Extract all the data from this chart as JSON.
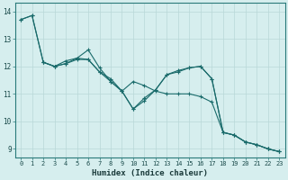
{
  "title": "",
  "xlabel": "Humidex (Indice chaleur)",
  "ylabel": "",
  "bg_color": "#d6eeee",
  "line_color": "#1a6b6b",
  "grid_color": "#b8d8d8",
  "xlim": [
    -0.5,
    23.5
  ],
  "ylim": [
    8.7,
    14.3
  ],
  "xticks": [
    0,
    1,
    2,
    3,
    4,
    5,
    6,
    7,
    8,
    9,
    10,
    11,
    12,
    13,
    14,
    15,
    16,
    17,
    18,
    19,
    20,
    21,
    22,
    23
  ],
  "yticks": [
    9,
    10,
    11,
    12,
    13,
    14
  ],
  "line1_x": [
    0,
    1,
    2,
    3,
    4,
    5,
    6,
    7,
    8,
    9,
    10,
    11,
    12,
    13,
    14,
    15,
    16,
    17,
    18,
    19,
    20,
    21,
    22,
    23
  ],
  "line1_y": [
    13.7,
    13.85,
    12.15,
    12.0,
    12.2,
    12.3,
    12.25,
    11.8,
    11.55,
    11.1,
    10.45,
    10.85,
    11.15,
    11.7,
    11.8,
    11.95,
    12.0,
    11.55,
    9.6,
    9.5,
    9.25,
    9.15,
    9.0,
    8.9
  ],
  "line2_x": [
    0,
    1,
    2,
    3,
    4,
    5,
    6,
    7,
    8,
    9,
    10,
    11,
    12,
    13,
    14,
    15,
    16,
    17,
    18,
    19,
    20,
    21,
    22,
    23
  ],
  "line2_y": [
    13.7,
    13.85,
    12.15,
    12.0,
    12.1,
    12.3,
    12.6,
    11.95,
    11.45,
    11.1,
    11.45,
    11.3,
    11.1,
    11.0,
    11.0,
    11.0,
    10.9,
    10.7,
    9.6,
    9.5,
    9.25,
    9.15,
    9.0,
    8.9
  ],
  "line3_x": [
    2,
    3,
    4,
    5,
    6,
    7,
    8,
    9,
    10,
    11,
    12,
    13,
    14,
    15,
    16,
    17,
    18,
    19,
    20,
    21,
    22,
    23
  ],
  "line3_y": [
    12.15,
    12.0,
    12.1,
    12.25,
    12.25,
    11.8,
    11.45,
    11.1,
    10.45,
    10.75,
    11.15,
    11.7,
    11.85,
    11.95,
    12.0,
    11.55,
    9.6,
    9.5,
    9.25,
    9.15,
    9.0,
    8.9
  ],
  "tick_fontsize": 5.0,
  "xlabel_fontsize": 6.5,
  "marker_size": 3.0,
  "line_width": 0.8
}
